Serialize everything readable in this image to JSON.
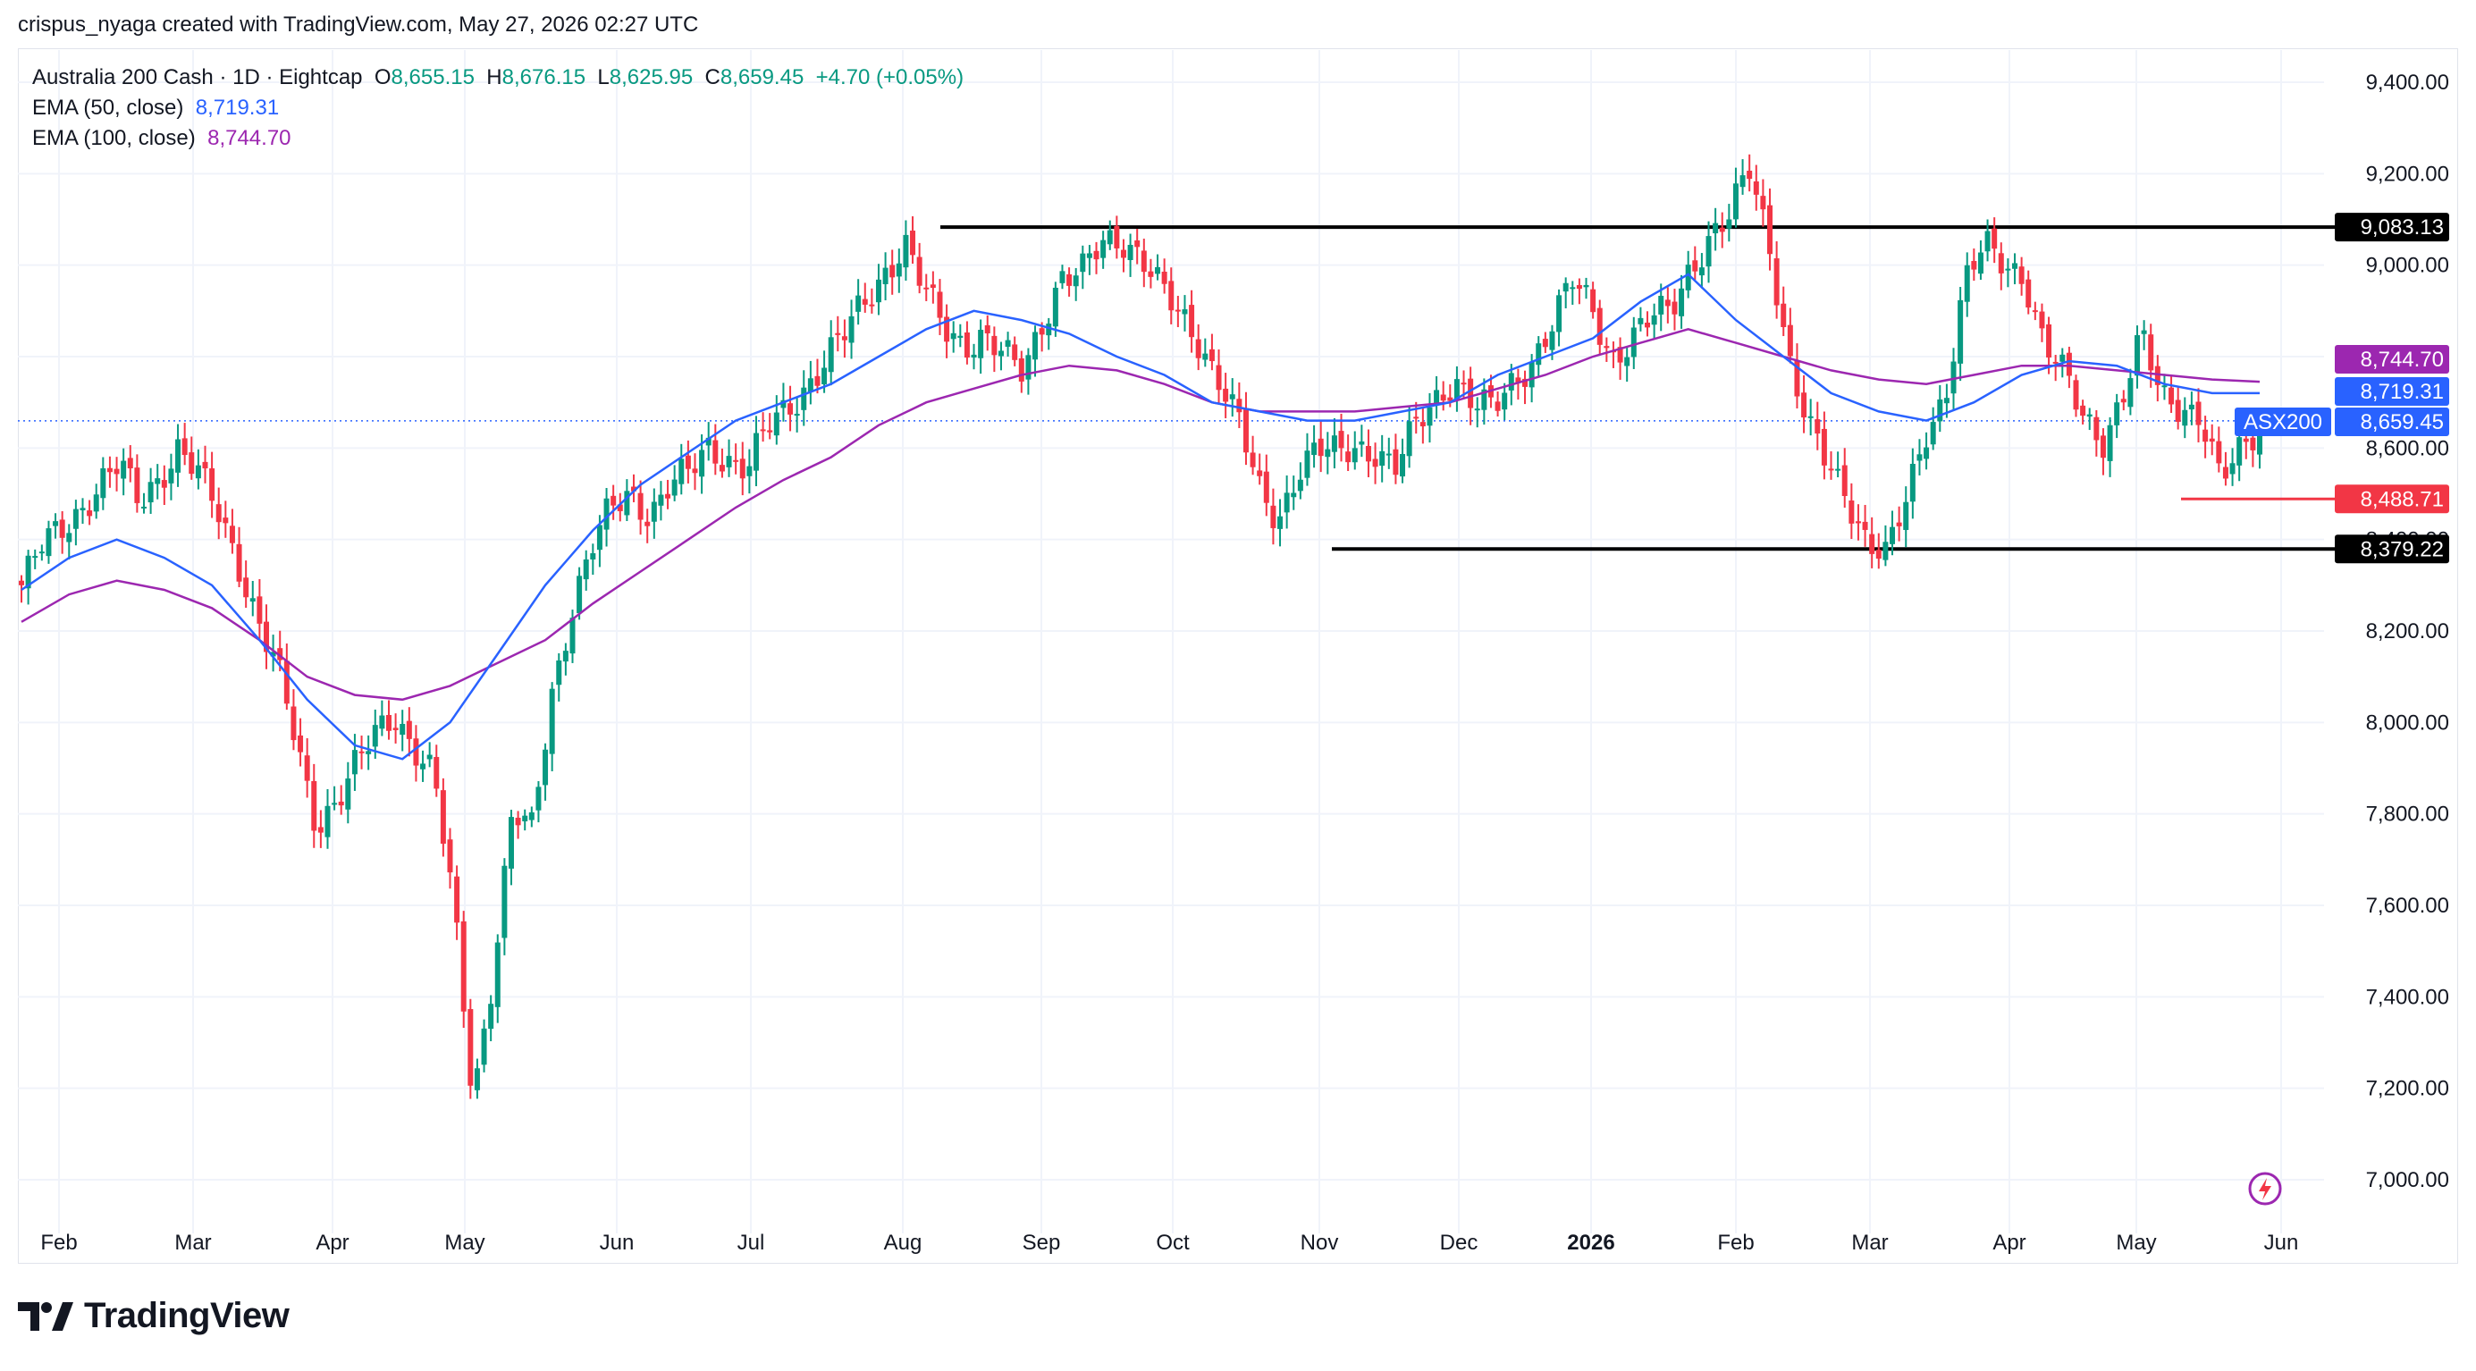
{
  "header": {
    "text": "crispus_nyaga created with TradingView.com, May 27, 2026 02:27 UTC"
  },
  "legend": {
    "symbol": "Australia 200 Cash · 1D · Eightcap",
    "o_label": "O",
    "o_value": "8,655.15",
    "h_label": "H",
    "h_value": "8,676.15",
    "l_label": "L",
    "l_value": "8,625.95",
    "c_label": "C",
    "c_value": "8,659.45",
    "change": "+4.70 (+0.05%)",
    "ema50_label": "EMA (50, close)",
    "ema50_value": "8,719.31",
    "ema100_label": "EMA (100, close)",
    "ema100_value": "8,744.70"
  },
  "footer": {
    "brand": "TradingView"
  },
  "colors": {
    "up": "#089981",
    "down": "#f23645",
    "ema50": "#2962ff",
    "ema100": "#9c27b0",
    "level_line": "#000000",
    "support_red": "#f23645"
  },
  "chart_data": {
    "type": "candlestick",
    "symbol": "ASX200",
    "ylim": [
      6920,
      9520
    ],
    "y_ticks": [
      "7,000.00",
      "7,200.00",
      "7,400.00",
      "7,600.00",
      "7,800.00",
      "8,000.00",
      "8,200.00",
      "8,400.00",
      "8,600.00",
      "8,800.00",
      "9,000.00",
      "9,200.00",
      "9,400.00"
    ],
    "y_tick_values": [
      7000,
      7200,
      7400,
      7600,
      7800,
      8000,
      8200,
      8400,
      8600,
      8800,
      9000,
      9200,
      9400
    ],
    "x_labels": [
      "Feb",
      "Mar",
      "Apr",
      "May",
      "Jun",
      "Jul",
      "Aug",
      "Sep",
      "Oct",
      "Nov",
      "Dec",
      "2026",
      "Feb",
      "Mar",
      "Apr",
      "May",
      "Jun"
    ],
    "price_labels": [
      {
        "text": "9,083.13",
        "value": 9083.13,
        "style": "black"
      },
      {
        "text": "8,744.70",
        "value": 8744.7,
        "style": "purple"
      },
      {
        "text": "8,719.31",
        "value": 8719.31,
        "style": "blue"
      },
      {
        "text": "8,659.45",
        "value": 8659.45,
        "style": "blue",
        "tag": "ASX200"
      },
      {
        "text": "8,488.71",
        "value": 8488.71,
        "style": "red"
      },
      {
        "text": "8,379.22",
        "value": 8379.22,
        "style": "black"
      }
    ],
    "horizontal_levels": [
      {
        "value": 9083.13,
        "x_from_month": "Aug",
        "color": "#000000"
      },
      {
        "value": 8379.22,
        "x_from_month": "Nov",
        "color": "#000000"
      },
      {
        "value": 8488.71,
        "x_from_month": "May",
        "color": "#f23645"
      }
    ],
    "price_anchors": [
      8300,
      8380,
      8420,
      8470,
      8520,
      8560,
      8480,
      8540,
      8600,
      8540,
      8460,
      8360,
      8230,
      8120,
      7950,
      7780,
      7830,
      7900,
      7970,
      8020,
      7950,
      7880,
      7600,
      7180,
      7450,
      7800,
      7760,
      8060,
      8250,
      8380,
      8460,
      8500,
      8460,
      8520,
      8540,
      8600,
      8580,
      8560,
      8640,
      8680,
      8740,
      8800,
      8850,
      8920,
      8990,
      9050,
      8940,
      8860,
      8830,
      8850,
      8800,
      8760,
      8880,
      8980,
      8980,
      9040,
      9060,
      9030,
      8950,
      8880,
      8830,
      8760,
      8660,
      8500,
      8440,
      8560,
      8600,
      8580,
      8600,
      8600,
      8560,
      8640,
      8700,
      8760,
      8700,
      8680,
      8740,
      8800,
      8880,
      8960,
      8900,
      8800,
      8840,
      8880,
      8900,
      9000,
      9060,
      9100,
      9210,
      9060,
      8800,
      8640,
      8560,
      8500,
      8400,
      8360,
      8480,
      8640,
      8720,
      8960,
      9040,
      9010,
      8980,
      8820,
      8760,
      8680,
      8620,
      8700,
      8840,
      8720,
      8700,
      8660,
      8520,
      8600,
      8659
    ],
    "ema50": [
      8290,
      8360,
      8400,
      8360,
      8300,
      8180,
      8050,
      7950,
      7920,
      8000,
      8150,
      8300,
      8420,
      8520,
      8590,
      8660,
      8700,
      8740,
      8800,
      8860,
      8900,
      8880,
      8850,
      8800,
      8760,
      8700,
      8680,
      8660,
      8660,
      8680,
      8700,
      8760,
      8800,
      8840,
      8920,
      8980,
      8880,
      8800,
      8720,
      8680,
      8660,
      8700,
      8760,
      8790,
      8780,
      8740,
      8720,
      8720
    ],
    "ema100": [
      8220,
      8280,
      8310,
      8290,
      8250,
      8180,
      8100,
      8060,
      8050,
      8080,
      8130,
      8180,
      8260,
      8330,
      8400,
      8470,
      8530,
      8580,
      8650,
      8700,
      8730,
      8760,
      8780,
      8770,
      8740,
      8700,
      8680,
      8680,
      8680,
      8690,
      8700,
      8730,
      8760,
      8800,
      8830,
      8860,
      8830,
      8800,
      8770,
      8750,
      8740,
      8760,
      8780,
      8780,
      8770,
      8760,
      8750,
      8745
    ]
  }
}
